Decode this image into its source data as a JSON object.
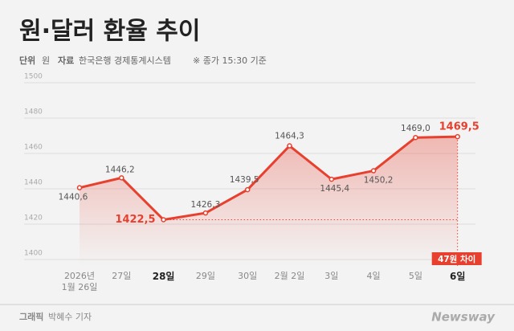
{
  "chart_data": {
    "type": "line",
    "title": "원·달러 환율 추이",
    "unit_label": "단위",
    "unit": "원",
    "source_label": "자료",
    "source": "한국은행 경제통계시스템",
    "note": "※ 종가 15:30 기준",
    "categories": [
      "2026년 1월 26일",
      "27일",
      "28일",
      "29일",
      "30일",
      "2월 2일",
      "3일",
      "4일",
      "5일",
      "6일"
    ],
    "series": [
      {
        "name": "원·달러 환율",
        "color": "#e8402f",
        "values": [
          1440.6,
          1446.2,
          1422.5,
          1426.3,
          1439.5,
          1464.3,
          1445.4,
          1450.2,
          1469.0,
          1469.5
        ],
        "value_labels": [
          "1440,6",
          "1446,2",
          "1422,5",
          "1426,3",
          "1439,5",
          "1464,3",
          "1445,4",
          "1450,2",
          "1469,0",
          "1469,5"
        ]
      }
    ],
    "highlight": [
      2,
      9
    ],
    "annotation": "47원 차이",
    "ylim": [
      1400,
      1500
    ],
    "yticks": [
      1400,
      1420,
      1440,
      1460,
      1480,
      1500
    ],
    "grid": true,
    "credit_label": "그래픽",
    "credit": "박혜수 기자",
    "brand": "Newsway"
  }
}
